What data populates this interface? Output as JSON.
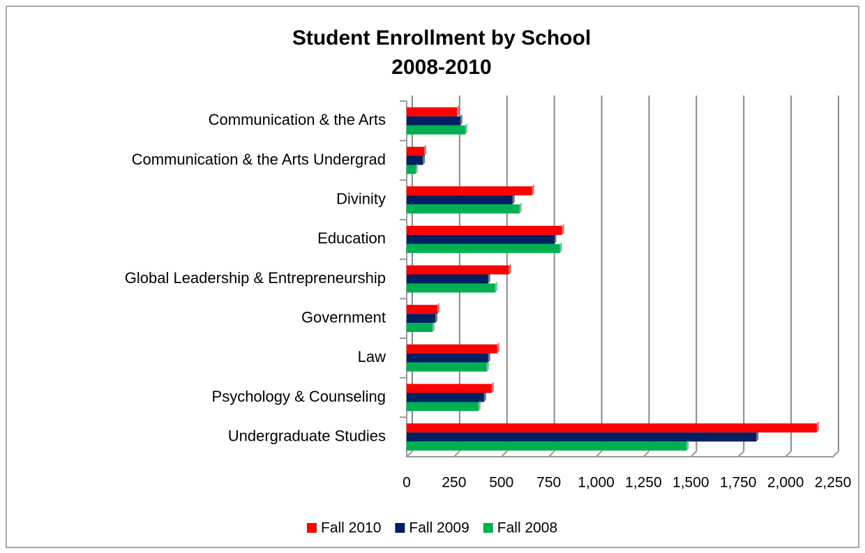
{
  "chart_data": {
    "type": "bar",
    "orientation": "horizontal",
    "title": "Student Enrollment by School",
    "subtitle": "2008-2010",
    "categories": [
      "Communication & the Arts",
      "Communication & the Arts Undergrad",
      "Divinity",
      "Education",
      "Global Leadership & Entrepreneurship",
      "Government",
      "Law",
      "Psychology & Counseling",
      "Undergraduate Studies"
    ],
    "series": [
      {
        "name": "Fall 2010",
        "color": "#ff0000",
        "values": [
          265,
          92,
          662,
          820,
          540,
          162,
          478,
          449,
          2165
        ]
      },
      {
        "name": "Fall 2009",
        "color": "#002060",
        "values": [
          283,
          85,
          559,
          779,
          430,
          151,
          430,
          408,
          1846
        ]
      },
      {
        "name": "Fall 2008",
        "color": "#00b050",
        "values": [
          309,
          48,
          596,
          809,
          467,
          136,
          423,
          379,
          1478
        ]
      }
    ],
    "xlim": [
      0,
      2250
    ],
    "xticks": [
      0,
      250,
      500,
      750,
      {
        "value": 1000,
        "label": "1,000"
      },
      {
        "value": 1250,
        "label": "1,250"
      },
      {
        "value": 1500,
        "label": "1,500"
      },
      {
        "value": 1750,
        "label": "1,750"
      },
      {
        "value": 2000,
        "label": "2,000"
      },
      {
        "value": 2250,
        "label": "2,250"
      }
    ],
    "grid": true,
    "legend": "bottom"
  }
}
